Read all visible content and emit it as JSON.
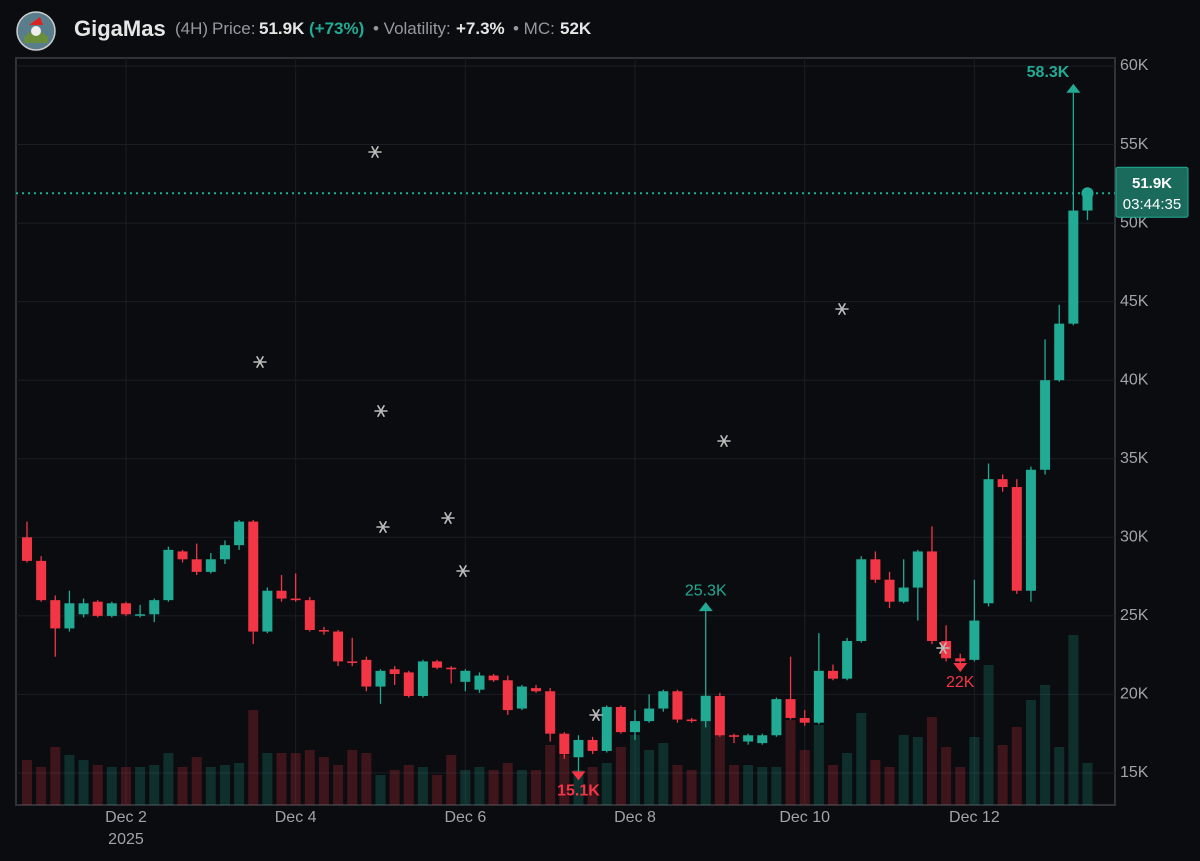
{
  "header": {
    "name": "GigaMas",
    "interval": "(4H)",
    "price_label": "Price:",
    "price": "51.9K",
    "change": "(+73%)",
    "volatility_label": "• Volatility:",
    "volatility": "+7.3%",
    "mc_label": "• MC:",
    "mc": "52K"
  },
  "chart_data": {
    "type": "candlestick",
    "categories": [
      null,
      null,
      null,
      null,
      null,
      null,
      null,
      "Dec 2",
      null,
      null,
      null,
      null,
      null,
      null,
      null,
      null,
      null,
      null,
      null,
      "Dec 4",
      null,
      null,
      null,
      null,
      null,
      null,
      null,
      null,
      null,
      null,
      null,
      "Dec 6",
      null,
      null,
      null,
      null,
      null,
      null,
      null,
      null,
      null,
      null,
      null,
      "Dec 8",
      null,
      null,
      null,
      null,
      null,
      null,
      null,
      null,
      null,
      null,
      null,
      "Dec 10",
      null,
      null,
      null,
      null,
      null,
      null,
      null,
      null,
      null,
      null,
      null,
      "Dec 12",
      null,
      null,
      null,
      null,
      null,
      null,
      null,
      null
    ],
    "x_year": "2025",
    "open": [
      30000,
      28500,
      26000,
      24200,
      25100,
      25900,
      25000,
      25800,
      25100,
      25100,
      26000,
      29100,
      28600,
      27800,
      28600,
      29500,
      31000,
      24000,
      26600,
      26100,
      26000,
      24100,
      24000,
      22100,
      22200,
      20500,
      21600,
      21400,
      19900,
      22100,
      21700,
      20800,
      20300,
      21200,
      20900,
      19100,
      20400,
      20200,
      17500,
      16000,
      17100,
      16400,
      19200,
      17600,
      18300,
      19100,
      20200,
      18400,
      18300,
      19900,
      17400,
      17000,
      16900,
      17400,
      19700,
      18500,
      18200,
      21500,
      21000,
      23400,
      28600,
      27300,
      25900,
      26800,
      29100,
      23400,
      22300,
      22200,
      25800,
      33700,
      33200,
      26600,
      34300,
      40000,
      43600,
      50800
    ],
    "high": [
      31000,
      28800,
      26300,
      26600,
      26100,
      26000,
      25900,
      25900,
      25700,
      26100,
      29400,
      29200,
      29600,
      29000,
      29800,
      31100,
      31100,
      26800,
      27600,
      27700,
      26200,
      24300,
      24100,
      23600,
      22400,
      21600,
      21800,
      21500,
      22200,
      22200,
      21800,
      21600,
      21400,
      21300,
      21200,
      20600,
      20600,
      20400,
      17600,
      17400,
      17300,
      19300,
      19300,
      19000,
      20000,
      20300,
      20300,
      18500,
      25300,
      20100,
      17500,
      17500,
      17500,
      19800,
      22400,
      19000,
      23900,
      21900,
      23600,
      28800,
      29100,
      27800,
      28600,
      29200,
      30700,
      24400,
      22600,
      27300,
      34700,
      34000,
      33700,
      34500,
      42600,
      44800,
      58300,
      52000
    ],
    "low": [
      28400,
      25900,
      22400,
      24000,
      24900,
      24900,
      24900,
      25000,
      24900,
      24600,
      25900,
      28400,
      27600,
      27700,
      28300,
      29200,
      23200,
      23900,
      25900,
      25900,
      24000,
      23800,
      21800,
      21800,
      20200,
      19400,
      20600,
      19800,
      19800,
      21600,
      20700,
      20200,
      20100,
      20800,
      18700,
      19000,
      20100,
      17000,
      15900,
      15100,
      16200,
      16300,
      17500,
      17100,
      18200,
      18900,
      18200,
      18200,
      17900,
      17300,
      16900,
      16800,
      16800,
      17300,
      18400,
      18000,
      18100,
      20900,
      20900,
      23300,
      27100,
      25500,
      25800,
      24700,
      23200,
      22100,
      22000,
      22100,
      25600,
      32900,
      26400,
      25900,
      34000,
      39900,
      43500,
      50200
    ],
    "close": [
      28500,
      26000,
      24200,
      25800,
      25800,
      25000,
      25800,
      25100,
      25100,
      26000,
      29200,
      28600,
      27800,
      28600,
      29500,
      31000,
      24000,
      26600,
      26100,
      26000,
      24100,
      24000,
      22100,
      22000,
      20500,
      21500,
      21300,
      19900,
      22100,
      21700,
      21600,
      21500,
      21200,
      20900,
      19000,
      20500,
      20200,
      17500,
      16200,
      17100,
      16400,
      19200,
      17600,
      18300,
      19100,
      20200,
      18400,
      18300,
      19900,
      17400,
      17300,
      17400,
      17400,
      19700,
      18500,
      18200,
      21500,
      21000,
      23400,
      28600,
      27300,
      25900,
      26800,
      29100,
      23400,
      22300,
      22100,
      24700,
      33700,
      33200,
      26600,
      34300,
      40000,
      43600,
      50800,
      51900
    ],
    "volume": [
      45,
      38,
      58,
      50,
      45,
      40,
      38,
      38,
      38,
      40,
      52,
      38,
      48,
      38,
      40,
      42,
      95,
      52,
      52,
      52,
      55,
      48,
      40,
      55,
      52,
      30,
      35,
      40,
      38,
      30,
      50,
      35,
      38,
      35,
      42,
      35,
      35,
      60,
      50,
      35,
      38,
      42,
      58,
      70,
      55,
      62,
      40,
      35,
      110,
      70,
      40,
      40,
      38,
      38,
      85,
      55,
      80,
      40,
      52,
      92,
      45,
      38,
      70,
      68,
      88,
      58,
      38,
      68,
      140,
      60,
      78,
      105,
      120,
      58,
      170,
      42
    ],
    "up_color": "#22ab94",
    "down_color": "#f23645",
    "ylim": [
      12960,
      60510
    ],
    "yticks": [
      {
        "value": 15000,
        "label": "15K"
      },
      {
        "value": 20000,
        "label": "20K"
      },
      {
        "value": 25000,
        "label": "25K"
      },
      {
        "value": 30000,
        "label": "30K"
      },
      {
        "value": 35000,
        "label": "35K"
      },
      {
        "value": 40000,
        "label": "40K"
      },
      {
        "value": 45000,
        "label": "45K"
      },
      {
        "value": 50000,
        "label": "50K"
      },
      {
        "value": 55000,
        "label": "55K"
      },
      {
        "value": 60000,
        "label": "60K"
      }
    ],
    "grid": true,
    "annotations": [
      {
        "value": 58300,
        "label": "58.3K"
      },
      {
        "value": 25300,
        "label": "25.3K"
      },
      {
        "value": 15100,
        "label": "15.1K"
      },
      {
        "value": 22000,
        "label": "22K"
      }
    ],
    "last_price": {
      "value": 51900,
      "label": "51.9K"
    },
    "countdown": "03:44:35"
  }
}
